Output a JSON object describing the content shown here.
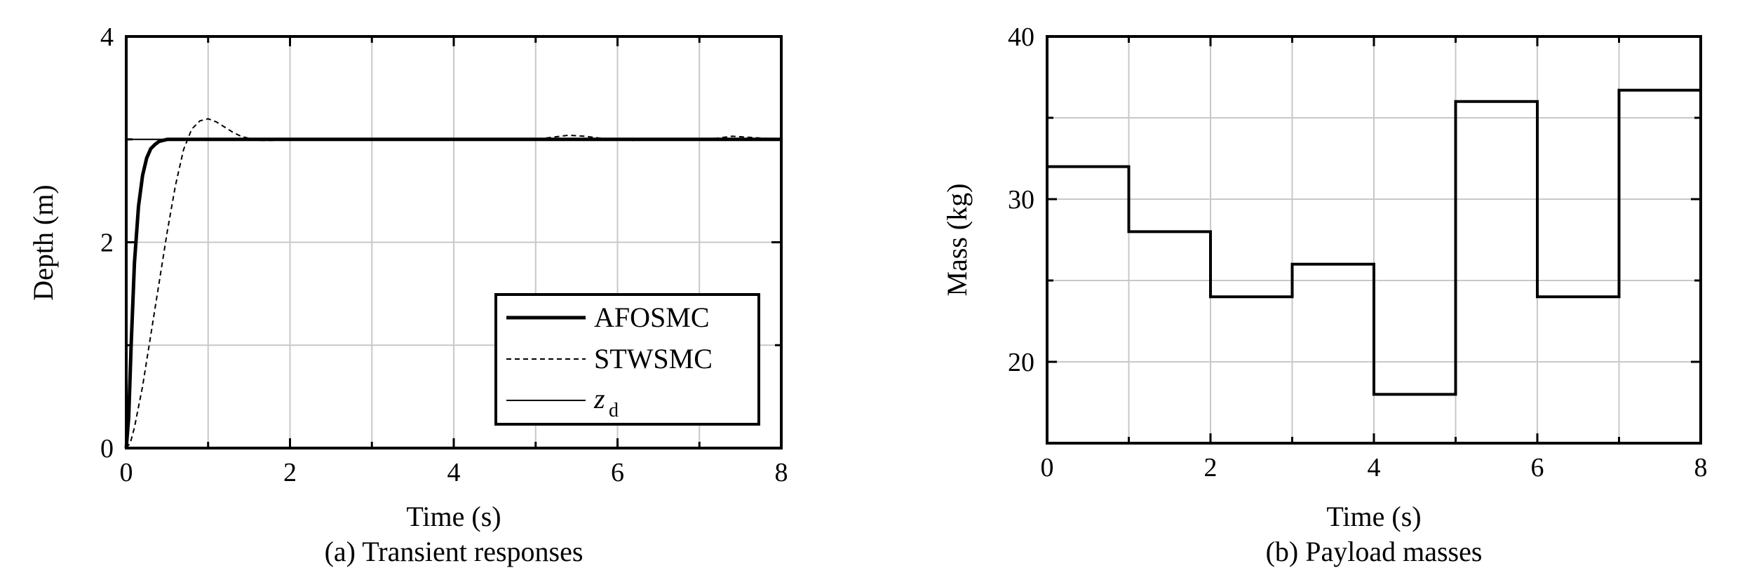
{
  "chart_data": [
    {
      "type": "line",
      "caption": "(a) Transient responses",
      "xlabel": "Time (s)",
      "ylabel": "Depth (m)",
      "xlim": [
        0,
        8
      ],
      "ylim": [
        0,
        4
      ],
      "xticks": [
        "0",
        "2",
        "4",
        "6",
        "8"
      ],
      "yticks": [
        "0",
        "2",
        "4"
      ],
      "grid": true,
      "legend_position": "lower-right",
      "series": [
        {
          "name": "AFOSMC",
          "style": "solid-thick",
          "x": [
            0,
            0.03,
            0.06,
            0.1,
            0.15,
            0.2,
            0.25,
            0.3,
            0.35,
            0.4,
            0.45,
            0.5,
            0.6,
            8
          ],
          "y": [
            0,
            0.3,
            1.0,
            1.8,
            2.35,
            2.65,
            2.82,
            2.91,
            2.95,
            2.98,
            2.99,
            3.0,
            3.0,
            3.0
          ]
        },
        {
          "name": "STWSMC",
          "style": "dashed",
          "x": [
            0,
            0.05,
            0.1,
            0.2,
            0.3,
            0.4,
            0.5,
            0.6,
            0.7,
            0.8,
            0.9,
            1.0,
            1.1,
            1.2,
            1.3,
            1.4,
            1.5,
            1.6,
            1.8,
            2.0,
            5.0,
            5.2,
            5.4,
            5.6,
            5.8,
            6.0,
            6.2,
            7.0,
            7.2,
            7.4,
            7.6,
            7.8,
            8.0
          ],
          "y": [
            0,
            0.05,
            0.2,
            0.6,
            1.1,
            1.6,
            2.1,
            2.55,
            2.9,
            3.1,
            3.18,
            3.2,
            3.17,
            3.12,
            3.07,
            3.03,
            3.01,
            2.99,
            2.99,
            3.0,
            3.0,
            3.02,
            3.04,
            3.03,
            3.01,
            3.0,
            2.99,
            3.0,
            3.01,
            3.03,
            3.02,
            3.01,
            3.0
          ]
        },
        {
          "name": "z",
          "subscript": "d",
          "style": "solid-thin",
          "x": [
            0,
            8
          ],
          "y": [
            3,
            3
          ]
        }
      ]
    },
    {
      "type": "line",
      "caption": "(b) Payload masses",
      "xlabel": "Time (s)",
      "ylabel": "Mass (kg)",
      "xlim": [
        0,
        8
      ],
      "ylim": [
        15,
        40
      ],
      "xticks": [
        "0",
        "2",
        "4",
        "6",
        "8"
      ],
      "yticks": [
        "20",
        "30",
        "40"
      ],
      "grid": true,
      "series": [
        {
          "style": "step",
          "x": [
            0,
            1,
            1,
            2,
            2,
            3,
            3,
            4,
            4,
            5,
            5,
            6,
            6,
            7,
            7,
            8,
            8
          ],
          "y": [
            32,
            32,
            28,
            28,
            24,
            24,
            26,
            26,
            18,
            18,
            36,
            36,
            24,
            24,
            36.7,
            36.7,
            25.3
          ]
        }
      ]
    }
  ]
}
